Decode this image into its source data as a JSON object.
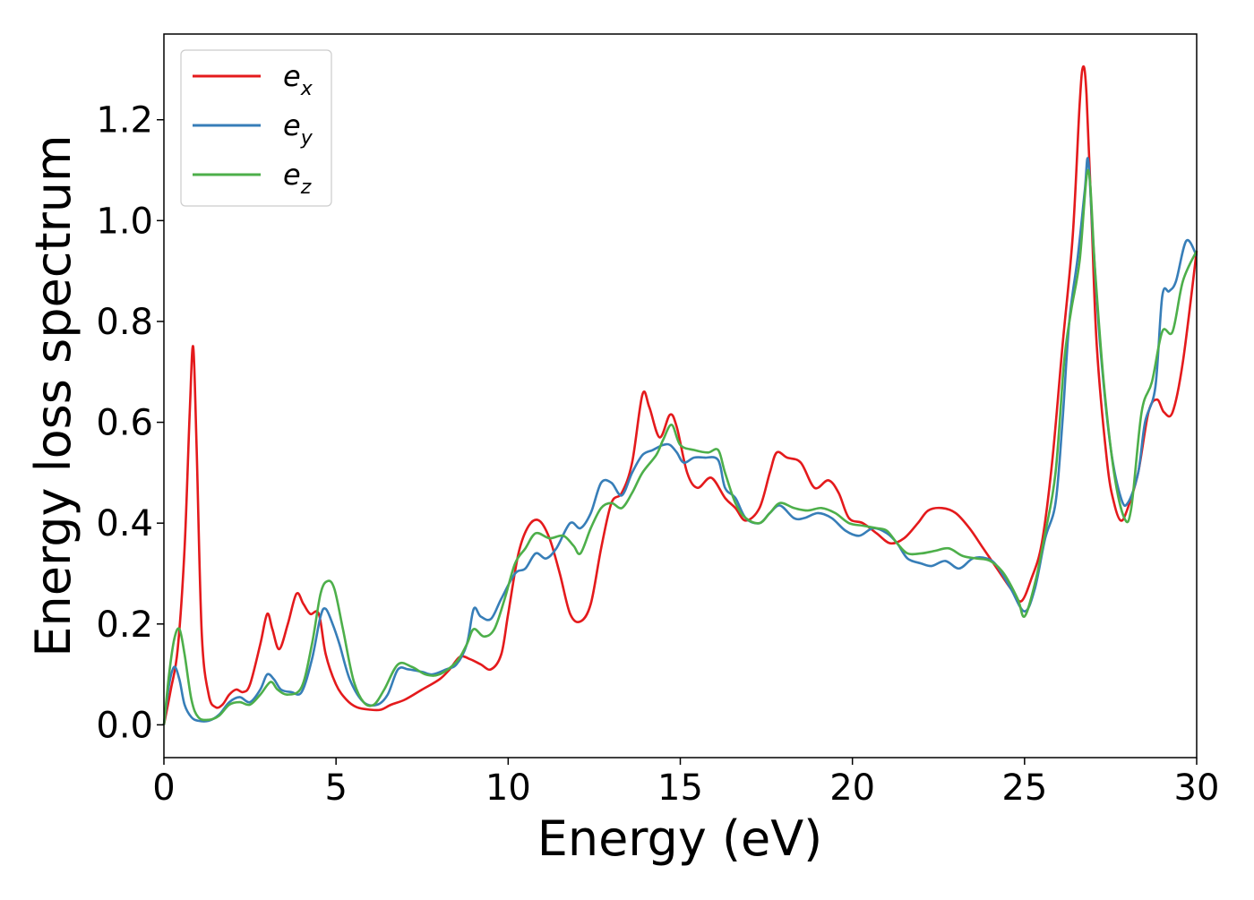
{
  "chart_data": {
    "type": "line",
    "xlabel": "Energy (eV)",
    "ylabel": "Energy loss spectrum",
    "xlim": [
      0,
      30
    ],
    "ylim": [
      -0.065,
      1.37
    ],
    "xticks": [
      0,
      5,
      10,
      15,
      20,
      25,
      30
    ],
    "xtick_labels": [
      "0",
      "5",
      "10",
      "15",
      "20",
      "25",
      "30"
    ],
    "yticks": [
      0.0,
      0.2,
      0.4,
      0.6,
      0.8,
      1.0,
      1.2
    ],
    "ytick_labels": [
      "0.0",
      "0.2",
      "0.4",
      "0.6",
      "0.8",
      "1.0",
      "1.2"
    ],
    "grid": false,
    "legend_position": "top-left",
    "series": [
      {
        "name": "e_x",
        "label_base": "e",
        "label_sub": "x",
        "color": "#e41a1c",
        "points": [
          [
            0,
            0.0
          ],
          [
            0.2,
            0.07
          ],
          [
            0.4,
            0.15
          ],
          [
            0.6,
            0.35
          ],
          [
            0.75,
            0.62
          ],
          [
            0.85,
            0.75
          ],
          [
            0.95,
            0.55
          ],
          [
            1.1,
            0.18
          ],
          [
            1.3,
            0.06
          ],
          [
            1.5,
            0.035
          ],
          [
            1.7,
            0.04
          ],
          [
            1.9,
            0.06
          ],
          [
            2.1,
            0.07
          ],
          [
            2.3,
            0.065
          ],
          [
            2.5,
            0.08
          ],
          [
            2.8,
            0.16
          ],
          [
            3.0,
            0.22
          ],
          [
            3.15,
            0.19
          ],
          [
            3.35,
            0.15
          ],
          [
            3.6,
            0.2
          ],
          [
            3.85,
            0.26
          ],
          [
            4.05,
            0.24
          ],
          [
            4.25,
            0.22
          ],
          [
            4.5,
            0.22
          ],
          [
            4.7,
            0.14
          ],
          [
            5.0,
            0.08
          ],
          [
            5.3,
            0.05
          ],
          [
            5.6,
            0.035
          ],
          [
            6.0,
            0.03
          ],
          [
            6.3,
            0.03
          ],
          [
            6.6,
            0.04
          ],
          [
            7.0,
            0.05
          ],
          [
            7.5,
            0.07
          ],
          [
            8.0,
            0.09
          ],
          [
            8.3,
            0.11
          ],
          [
            8.6,
            0.135
          ],
          [
            8.9,
            0.13
          ],
          [
            9.2,
            0.12
          ],
          [
            9.5,
            0.11
          ],
          [
            9.8,
            0.14
          ],
          [
            10.0,
            0.22
          ],
          [
            10.3,
            0.34
          ],
          [
            10.6,
            0.395
          ],
          [
            10.9,
            0.405
          ],
          [
            11.2,
            0.37
          ],
          [
            11.5,
            0.3
          ],
          [
            11.8,
            0.22
          ],
          [
            12.1,
            0.205
          ],
          [
            12.4,
            0.24
          ],
          [
            12.7,
            0.35
          ],
          [
            13.0,
            0.44
          ],
          [
            13.3,
            0.46
          ],
          [
            13.6,
            0.52
          ],
          [
            13.9,
            0.655
          ],
          [
            14.1,
            0.63
          ],
          [
            14.4,
            0.57
          ],
          [
            14.7,
            0.615
          ],
          [
            14.9,
            0.59
          ],
          [
            15.2,
            0.5
          ],
          [
            15.5,
            0.47
          ],
          [
            15.9,
            0.49
          ],
          [
            16.3,
            0.45
          ],
          [
            16.6,
            0.43
          ],
          [
            16.9,
            0.405
          ],
          [
            17.3,
            0.43
          ],
          [
            17.6,
            0.5
          ],
          [
            17.8,
            0.54
          ],
          [
            18.1,
            0.53
          ],
          [
            18.5,
            0.52
          ],
          [
            18.9,
            0.47
          ],
          [
            19.3,
            0.485
          ],
          [
            19.6,
            0.46
          ],
          [
            19.9,
            0.41
          ],
          [
            20.3,
            0.4
          ],
          [
            20.7,
            0.38
          ],
          [
            21.1,
            0.36
          ],
          [
            21.5,
            0.37
          ],
          [
            21.9,
            0.4
          ],
          [
            22.2,
            0.425
          ],
          [
            22.6,
            0.43
          ],
          [
            23.0,
            0.42
          ],
          [
            23.4,
            0.39
          ],
          [
            23.8,
            0.35
          ],
          [
            24.2,
            0.31
          ],
          [
            24.6,
            0.27
          ],
          [
            24.9,
            0.245
          ],
          [
            25.2,
            0.29
          ],
          [
            25.5,
            0.36
          ],
          [
            25.8,
            0.52
          ],
          [
            26.1,
            0.75
          ],
          [
            26.4,
            0.97
          ],
          [
            26.6,
            1.23
          ],
          [
            26.7,
            1.305
          ],
          [
            26.8,
            1.25
          ],
          [
            26.95,
            1.0
          ],
          [
            27.1,
            0.75
          ],
          [
            27.4,
            0.52
          ],
          [
            27.6,
            0.44
          ],
          [
            27.8,
            0.405
          ],
          [
            28.0,
            0.43
          ],
          [
            28.3,
            0.5
          ],
          [
            28.6,
            0.62
          ],
          [
            28.85,
            0.645
          ],
          [
            29.05,
            0.62
          ],
          [
            29.3,
            0.62
          ],
          [
            29.6,
            0.72
          ],
          [
            30.0,
            0.94
          ]
        ]
      },
      {
        "name": "e_y",
        "label_base": "e",
        "label_sub": "y",
        "color": "#377eb8",
        "points": [
          [
            0,
            0.0
          ],
          [
            0.15,
            0.08
          ],
          [
            0.3,
            0.115
          ],
          [
            0.45,
            0.09
          ],
          [
            0.6,
            0.04
          ],
          [
            0.8,
            0.015
          ],
          [
            1.0,
            0.008
          ],
          [
            1.3,
            0.008
          ],
          [
            1.6,
            0.02
          ],
          [
            1.9,
            0.045
          ],
          [
            2.2,
            0.055
          ],
          [
            2.5,
            0.045
          ],
          [
            2.8,
            0.07
          ],
          [
            3.0,
            0.1
          ],
          [
            3.2,
            0.09
          ],
          [
            3.4,
            0.07
          ],
          [
            3.7,
            0.065
          ],
          [
            4.0,
            0.065
          ],
          [
            4.3,
            0.13
          ],
          [
            4.55,
            0.215
          ],
          [
            4.7,
            0.23
          ],
          [
            4.9,
            0.2
          ],
          [
            5.1,
            0.16
          ],
          [
            5.4,
            0.09
          ],
          [
            5.8,
            0.045
          ],
          [
            6.2,
            0.04
          ],
          [
            6.5,
            0.06
          ],
          [
            6.8,
            0.11
          ],
          [
            7.1,
            0.11
          ],
          [
            7.5,
            0.105
          ],
          [
            7.8,
            0.1
          ],
          [
            8.2,
            0.11
          ],
          [
            8.5,
            0.12
          ],
          [
            8.8,
            0.16
          ],
          [
            9.0,
            0.23
          ],
          [
            9.2,
            0.215
          ],
          [
            9.5,
            0.21
          ],
          [
            9.8,
            0.25
          ],
          [
            10.2,
            0.3
          ],
          [
            10.5,
            0.31
          ],
          [
            10.8,
            0.34
          ],
          [
            11.1,
            0.33
          ],
          [
            11.4,
            0.35
          ],
          [
            11.8,
            0.4
          ],
          [
            12.1,
            0.39
          ],
          [
            12.4,
            0.42
          ],
          [
            12.7,
            0.48
          ],
          [
            13.0,
            0.48
          ],
          [
            13.3,
            0.455
          ],
          [
            13.6,
            0.5
          ],
          [
            13.9,
            0.535
          ],
          [
            14.2,
            0.545
          ],
          [
            14.5,
            0.555
          ],
          [
            14.7,
            0.555
          ],
          [
            14.9,
            0.54
          ],
          [
            15.1,
            0.52
          ],
          [
            15.4,
            0.53
          ],
          [
            15.7,
            0.53
          ],
          [
            16.1,
            0.525
          ],
          [
            16.3,
            0.47
          ],
          [
            16.6,
            0.45
          ],
          [
            16.9,
            0.41
          ],
          [
            17.3,
            0.4
          ],
          [
            17.6,
            0.42
          ],
          [
            17.9,
            0.435
          ],
          [
            18.3,
            0.41
          ],
          [
            18.6,
            0.41
          ],
          [
            19.0,
            0.42
          ],
          [
            19.4,
            0.41
          ],
          [
            19.8,
            0.385
          ],
          [
            20.2,
            0.375
          ],
          [
            20.6,
            0.39
          ],
          [
            21.0,
            0.38
          ],
          [
            21.3,
            0.36
          ],
          [
            21.6,
            0.33
          ],
          [
            22.0,
            0.32
          ],
          [
            22.3,
            0.315
          ],
          [
            22.7,
            0.325
          ],
          [
            23.1,
            0.31
          ],
          [
            23.5,
            0.33
          ],
          [
            23.9,
            0.33
          ],
          [
            24.2,
            0.315
          ],
          [
            24.6,
            0.27
          ],
          [
            25.0,
            0.225
          ],
          [
            25.3,
            0.27
          ],
          [
            25.6,
            0.37
          ],
          [
            25.9,
            0.44
          ],
          [
            26.1,
            0.6
          ],
          [
            26.3,
            0.8
          ],
          [
            26.55,
            0.93
          ],
          [
            26.75,
            1.06
          ],
          [
            26.85,
            1.12
          ],
          [
            27.0,
            0.95
          ],
          [
            27.2,
            0.75
          ],
          [
            27.5,
            0.55
          ],
          [
            27.8,
            0.45
          ],
          [
            28.0,
            0.44
          ],
          [
            28.3,
            0.5
          ],
          [
            28.5,
            0.6
          ],
          [
            28.8,
            0.67
          ],
          [
            29.0,
            0.85
          ],
          [
            29.2,
            0.86
          ],
          [
            29.4,
            0.88
          ],
          [
            29.7,
            0.96
          ],
          [
            30.0,
            0.93
          ]
        ]
      },
      {
        "name": "e_z",
        "label_base": "e",
        "label_sub": "z",
        "color": "#4daf4a",
        "points": [
          [
            0,
            0.0
          ],
          [
            0.15,
            0.1
          ],
          [
            0.3,
            0.17
          ],
          [
            0.45,
            0.19
          ],
          [
            0.6,
            0.14
          ],
          [
            0.8,
            0.05
          ],
          [
            1.0,
            0.015
          ],
          [
            1.3,
            0.01
          ],
          [
            1.6,
            0.018
          ],
          [
            1.9,
            0.04
          ],
          [
            2.2,
            0.045
          ],
          [
            2.5,
            0.04
          ],
          [
            2.8,
            0.06
          ],
          [
            3.1,
            0.085
          ],
          [
            3.3,
            0.07
          ],
          [
            3.6,
            0.06
          ],
          [
            4.0,
            0.075
          ],
          [
            4.3,
            0.16
          ],
          [
            4.55,
            0.26
          ],
          [
            4.75,
            0.285
          ],
          [
            4.95,
            0.27
          ],
          [
            5.2,
            0.19
          ],
          [
            5.5,
            0.09
          ],
          [
            5.8,
            0.045
          ],
          [
            6.1,
            0.04
          ],
          [
            6.4,
            0.07
          ],
          [
            6.8,
            0.12
          ],
          [
            7.2,
            0.115
          ],
          [
            7.6,
            0.1
          ],
          [
            8.0,
            0.1
          ],
          [
            8.5,
            0.125
          ],
          [
            8.8,
            0.16
          ],
          [
            9.0,
            0.19
          ],
          [
            9.3,
            0.175
          ],
          [
            9.6,
            0.19
          ],
          [
            9.9,
            0.25
          ],
          [
            10.2,
            0.32
          ],
          [
            10.5,
            0.35
          ],
          [
            10.8,
            0.38
          ],
          [
            11.2,
            0.37
          ],
          [
            11.6,
            0.375
          ],
          [
            11.9,
            0.355
          ],
          [
            12.1,
            0.34
          ],
          [
            12.4,
            0.39
          ],
          [
            12.7,
            0.43
          ],
          [
            13.0,
            0.44
          ],
          [
            13.3,
            0.43
          ],
          [
            13.6,
            0.46
          ],
          [
            13.9,
            0.5
          ],
          [
            14.3,
            0.535
          ],
          [
            14.5,
            0.565
          ],
          [
            14.75,
            0.595
          ],
          [
            15.0,
            0.555
          ],
          [
            15.4,
            0.545
          ],
          [
            15.8,
            0.54
          ],
          [
            16.1,
            0.545
          ],
          [
            16.3,
            0.5
          ],
          [
            16.6,
            0.44
          ],
          [
            16.9,
            0.41
          ],
          [
            17.3,
            0.4
          ],
          [
            17.6,
            0.42
          ],
          [
            17.9,
            0.44
          ],
          [
            18.3,
            0.43
          ],
          [
            18.7,
            0.425
          ],
          [
            19.1,
            0.43
          ],
          [
            19.5,
            0.42
          ],
          [
            19.9,
            0.4
          ],
          [
            20.3,
            0.395
          ],
          [
            20.7,
            0.39
          ],
          [
            21.0,
            0.385
          ],
          [
            21.3,
            0.36
          ],
          [
            21.6,
            0.34
          ],
          [
            22.0,
            0.34
          ],
          [
            22.4,
            0.345
          ],
          [
            22.8,
            0.35
          ],
          [
            23.2,
            0.335
          ],
          [
            23.6,
            0.33
          ],
          [
            24.0,
            0.325
          ],
          [
            24.4,
            0.3
          ],
          [
            24.8,
            0.25
          ],
          [
            25.0,
            0.215
          ],
          [
            25.3,
            0.28
          ],
          [
            25.6,
            0.38
          ],
          [
            25.9,
            0.5
          ],
          [
            26.15,
            0.72
          ],
          [
            26.35,
            0.82
          ],
          [
            26.6,
            0.92
          ],
          [
            26.85,
            1.1
          ],
          [
            27.05,
            0.9
          ],
          [
            27.3,
            0.68
          ],
          [
            27.6,
            0.5
          ],
          [
            27.9,
            0.41
          ],
          [
            28.1,
            0.43
          ],
          [
            28.4,
            0.62
          ],
          [
            28.7,
            0.68
          ],
          [
            29.0,
            0.78
          ],
          [
            29.3,
            0.78
          ],
          [
            29.6,
            0.88
          ],
          [
            30.0,
            0.94
          ]
        ]
      }
    ]
  }
}
